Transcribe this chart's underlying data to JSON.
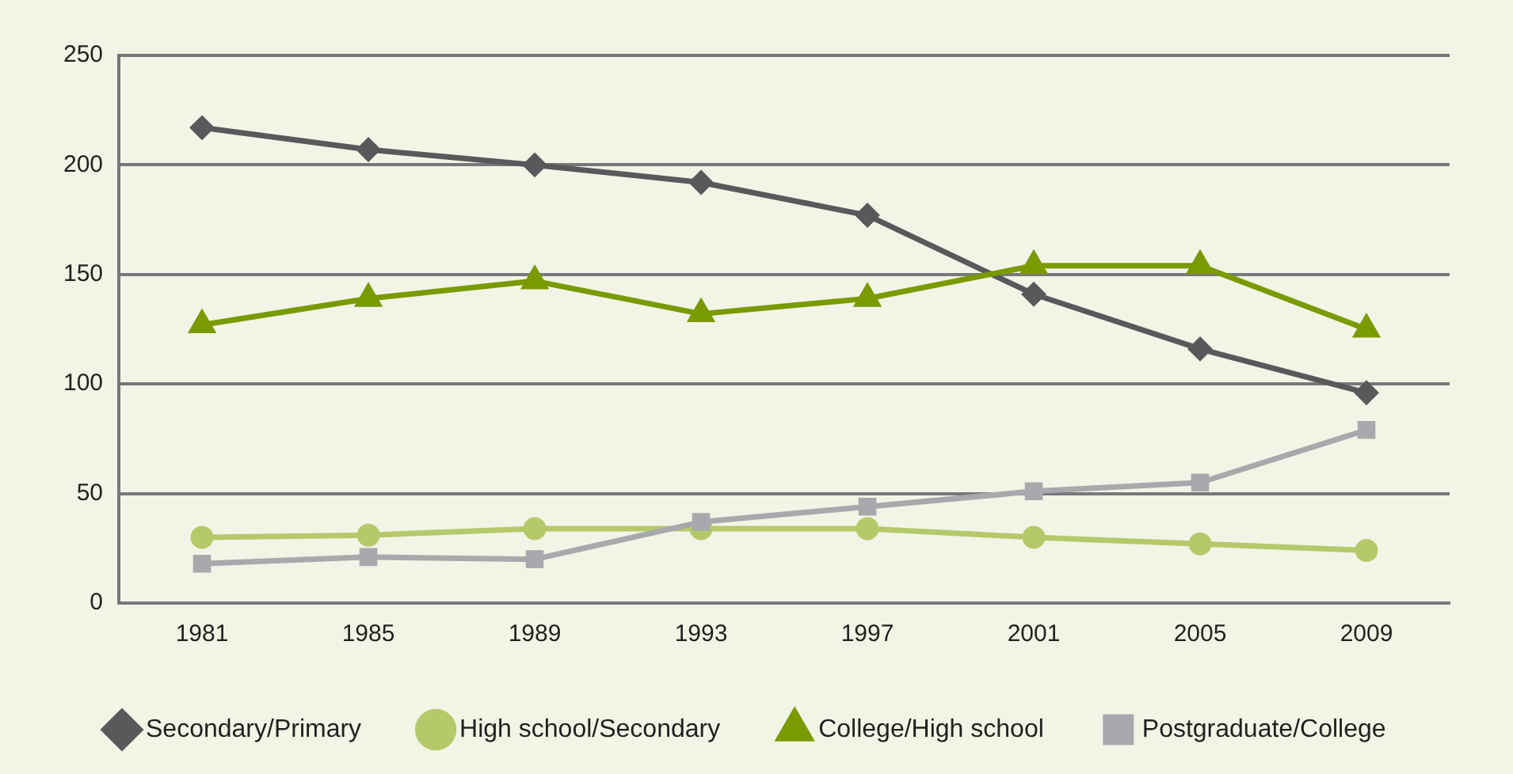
{
  "chart_data": {
    "type": "line",
    "categories": [
      "1981",
      "1985",
      "1989",
      "1993",
      "1997",
      "2001",
      "2005",
      "2009"
    ],
    "series": [
      {
        "name": "Secondary/Primary",
        "color": "#58595b",
        "marker": "diamond",
        "values": [
          217,
          207,
          200,
          192,
          177,
          141,
          116,
          96
        ]
      },
      {
        "name": "High school/Secondary",
        "color": "#b5c96a",
        "marker": "circle",
        "values": [
          30,
          31,
          34,
          34,
          34,
          30,
          27,
          24
        ]
      },
      {
        "name": "College/High school",
        "color": "#7a9a01",
        "marker": "triangle",
        "values": [
          127,
          139,
          147,
          132,
          139,
          154,
          154,
          125
        ]
      },
      {
        "name": "Postgraduate/College",
        "color": "#a7a9ac",
        "marker": "square",
        "values": [
          18,
          21,
          20,
          37,
          44,
          51,
          55,
          79
        ]
      }
    ],
    "ylim": [
      0,
      250
    ],
    "yticks": [
      0,
      50,
      100,
      150,
      200,
      250
    ],
    "grid": "y",
    "legend": "bottom",
    "line_style": "solid"
  }
}
